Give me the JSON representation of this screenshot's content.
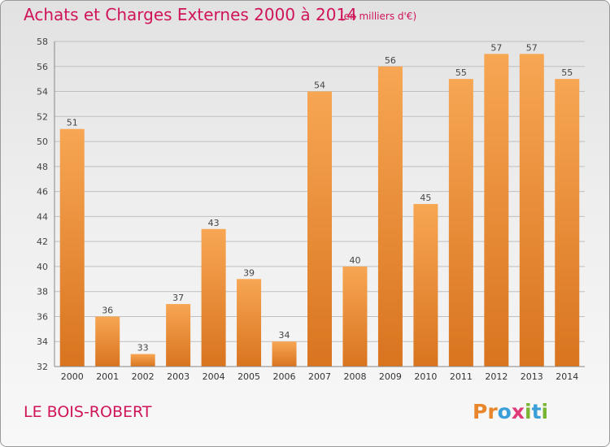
{
  "header": {
    "title": "Achats et Charges Externes 2000 à 2014",
    "unit": "(en milliers d'€)"
  },
  "footer": {
    "commune": "LE BOIS-ROBERT",
    "logo": "Proxiti"
  },
  "colors": {
    "title": "#d0145a",
    "bar_light": "#f7a653",
    "bar_dark": "#d9741f",
    "grid": "#bfbfbf",
    "logo_letters": [
      "#e9862c",
      "#e9862c",
      "#3a9ed8",
      "#e03a7a",
      "#7ab435",
      "#3a9ed8",
      "#7ab435"
    ]
  },
  "chart_data": {
    "type": "bar",
    "categories": [
      "2000",
      "2001",
      "2002",
      "2003",
      "2004",
      "2005",
      "2006",
      "2007",
      "2008",
      "2009",
      "2010",
      "2011",
      "2012",
      "2013",
      "2014"
    ],
    "values": [
      51,
      36,
      33,
      37,
      43,
      39,
      34,
      54,
      40,
      56,
      45,
      55,
      57,
      57,
      55
    ],
    "ylim": [
      32,
      58
    ],
    "yticks": [
      32,
      34,
      36,
      38,
      40,
      42,
      44,
      46,
      48,
      50,
      52,
      54,
      56,
      58
    ],
    "grid": true,
    "data_labels": true
  }
}
